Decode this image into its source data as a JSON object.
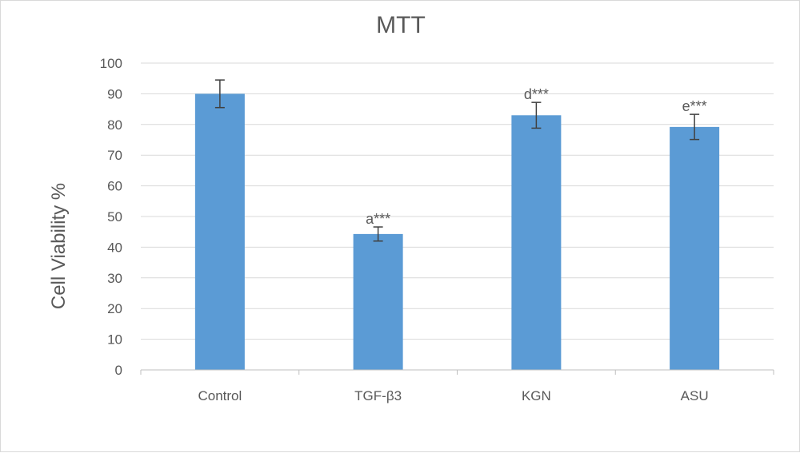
{
  "chart_data": {
    "type": "bar",
    "title": "MTT",
    "xlabel": "",
    "ylabel": "Cell Viability %",
    "categories": [
      "Control",
      "TGF-β3",
      "KGN",
      "ASU"
    ],
    "values": [
      90,
      44.3,
      83,
      79.2
    ],
    "error": [
      4.5,
      2.3,
      4.2,
      4.1
    ],
    "annotations": [
      "",
      "a***",
      "d***",
      "e***"
    ],
    "ylim": [
      0,
      100
    ],
    "yticks": [
      0,
      10,
      20,
      30,
      40,
      50,
      60,
      70,
      80,
      90,
      100
    ],
    "grid": true,
    "bar_color": "#5b9bd5",
    "error_bar_color": "#404040",
    "grid_color": "#d9d9d9"
  }
}
